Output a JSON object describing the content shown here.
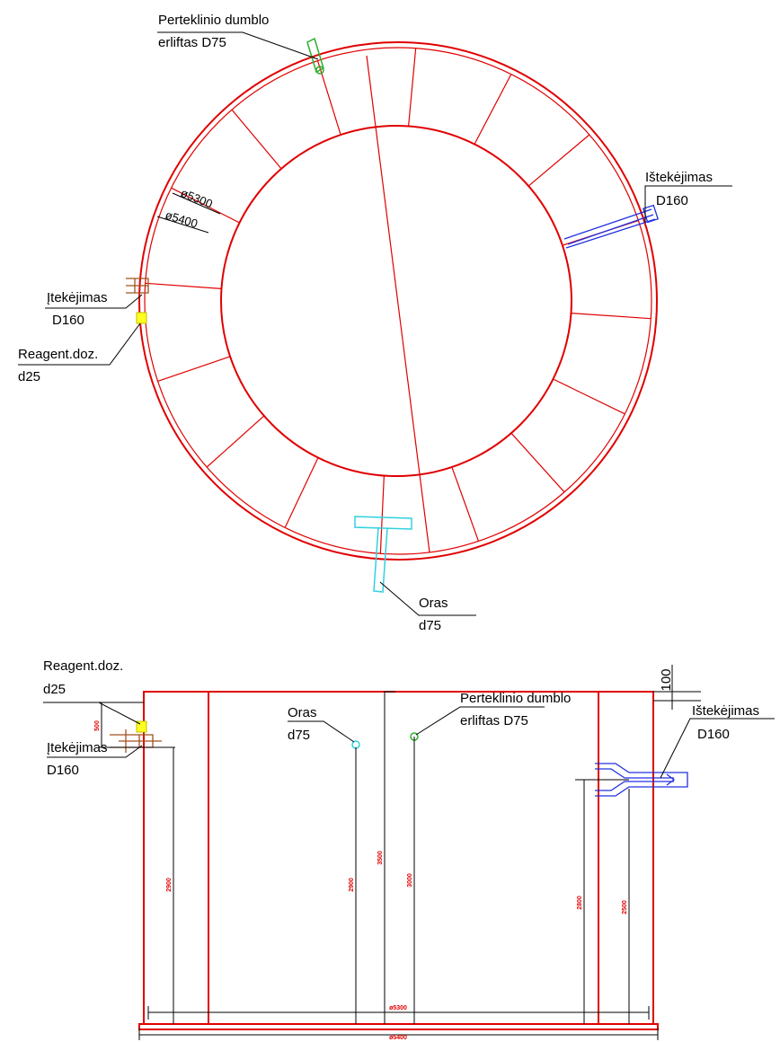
{
  "top_view": {
    "overflow": [
      "Perteklinio dumblo",
      "erliftas D75"
    ],
    "outlet": [
      "Ištekėjimas",
      "D160"
    ],
    "inner_diameter": "ø5300",
    "outer_diameter": "ø5400",
    "inlet": [
      "Įtekėjimas",
      "D160"
    ],
    "reagent": [
      "Reagent.doz.",
      "d25"
    ],
    "air": [
      "Oras",
      "d75"
    ]
  },
  "side_view": {
    "reagent": [
      "Reagent.doz.",
      "d25"
    ],
    "reagent_height": "500",
    "inlet": [
      "Įtekėjimas",
      "D160"
    ],
    "air": [
      "Oras",
      "d75"
    ],
    "overflow": [
      "Perteklinio dumblo",
      "erliftas D75"
    ],
    "top_offset": "100",
    "outlet": [
      "Ištekėjimas",
      "D160"
    ],
    "dimensions": [
      "2900",
      "2900",
      "3500",
      "3000",
      "2800",
      "2500"
    ],
    "inner_diameter": "ø5300",
    "outer_diameter": "ø5400"
  }
}
